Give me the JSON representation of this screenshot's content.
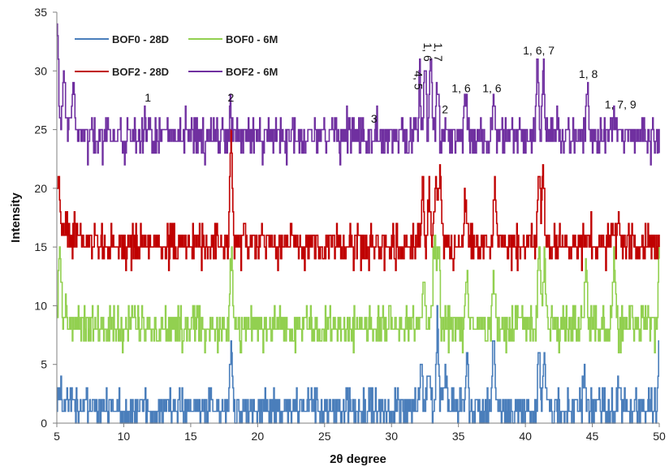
{
  "chart_data": {
    "type": "line",
    "xlabel": "2θ degree",
    "ylabel": "Intensity",
    "xlim": [
      5,
      50
    ],
    "ylim": [
      0,
      35
    ],
    "xticks": [
      5,
      10,
      15,
      20,
      25,
      30,
      35,
      40,
      45,
      50
    ],
    "yticks": [
      0,
      5,
      10,
      15,
      20,
      25,
      30,
      35
    ],
    "grid": false,
    "legend_position": "top-left, inside plot, two columns",
    "series": [
      {
        "name": "BOF0 - 28D",
        "color": "#4a7ebb",
        "baseline": 1.2,
        "noise": 3,
        "peaks": [
          [
            18.0,
            6.5
          ],
          [
            32.2,
            5
          ],
          [
            32.8,
            5
          ],
          [
            33.4,
            8
          ],
          [
            34.0,
            4
          ],
          [
            35.6,
            5
          ],
          [
            37.6,
            7
          ],
          [
            41.0,
            6
          ],
          [
            41.4,
            5.5
          ],
          [
            44.4,
            5
          ],
          [
            47.0,
            3
          ],
          [
            50.0,
            8
          ]
        ]
      },
      {
        "name": "BOF0 - 6M",
        "color": "#92d050",
        "baseline": 8.2,
        "noise": 3,
        "peaks": [
          [
            5.2,
            14
          ],
          [
            18.0,
            14.5
          ],
          [
            32.4,
            12
          ],
          [
            33.2,
            17
          ],
          [
            33.5,
            16
          ],
          [
            35.6,
            13
          ],
          [
            37.6,
            13
          ],
          [
            41.0,
            15
          ],
          [
            41.4,
            14
          ],
          [
            44.5,
            13
          ],
          [
            46.6,
            14.5
          ],
          [
            50.0,
            15
          ]
        ]
      },
      {
        "name": "BOF2 - 28D",
        "color": "#c00000",
        "baseline": 15.2,
        "noise": 3,
        "peaks": [
          [
            5.1,
            21
          ],
          [
            18.0,
            24
          ],
          [
            32.3,
            21
          ],
          [
            32.8,
            20
          ],
          [
            33.3,
            22
          ],
          [
            33.6,
            21
          ],
          [
            35.5,
            19
          ],
          [
            37.7,
            21
          ],
          [
            41.0,
            22
          ],
          [
            41.3,
            21
          ],
          [
            46.9,
            18
          ]
        ]
      },
      {
        "name": "BOF2 - 6M",
        "color": "#7030a0",
        "baseline": 24.4,
        "noise": 3,
        "peaks": [
          [
            5.0,
            33
          ],
          [
            5.5,
            29
          ],
          [
            6.2,
            28
          ],
          [
            11.9,
            27
          ],
          [
            18.0,
            27
          ],
          [
            28.8,
            26
          ],
          [
            32.1,
            29
          ],
          [
            32.5,
            30
          ],
          [
            32.9,
            31
          ],
          [
            33.4,
            30
          ],
          [
            34.1,
            26
          ],
          [
            35.5,
            28
          ],
          [
            37.6,
            28
          ],
          [
            40.9,
            31
          ],
          [
            41.3,
            30
          ],
          [
            44.6,
            29
          ],
          [
            46.6,
            26
          ]
        ]
      }
    ],
    "annotations": [
      {
        "text": "1",
        "x": 11.8,
        "y": 27.4
      },
      {
        "text": "2",
        "x": 18.0,
        "y": 27.4
      },
      {
        "text": "3",
        "x": 28.7,
        "y": 25.6
      },
      {
        "text": "4, 5",
        "x": 31.7,
        "y": 29.2,
        "rotate": 90
      },
      {
        "text": "1, 6",
        "x": 32.4,
        "y": 31.6,
        "rotate": 90
      },
      {
        "text": "1, 7",
        "x": 33.2,
        "y": 31.6,
        "rotate": 90
      },
      {
        "text": "2",
        "x": 34.0,
        "y": 26.4
      },
      {
        "text": "1, 6",
        "x": 35.2,
        "y": 28.2
      },
      {
        "text": "1, 6",
        "x": 37.5,
        "y": 28.2
      },
      {
        "text": "1, 6, 7",
        "x": 41.0,
        "y": 31.4
      },
      {
        "text": "1, 8",
        "x": 44.7,
        "y": 29.4
      },
      {
        "text": "1, 7, 9",
        "x": 47.1,
        "y": 26.8
      }
    ]
  }
}
